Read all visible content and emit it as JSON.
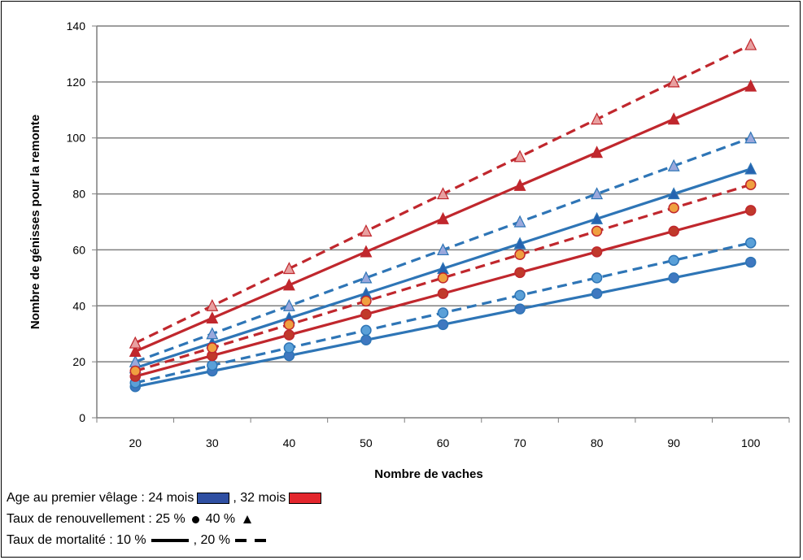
{
  "chart_data": {
    "type": "line",
    "xlabel": "Nombre de vaches",
    "ylabel": "Nombre de génisses pour la remonte",
    "x": [
      20,
      30,
      40,
      50,
      60,
      70,
      80,
      90,
      100
    ],
    "xlim": [
      15,
      105
    ],
    "ylim": [
      0,
      140
    ],
    "yticks": [
      0,
      20,
      40,
      60,
      80,
      100,
      120,
      140
    ],
    "grid": true,
    "series": [
      {
        "color": "#2e75b6",
        "dash": false,
        "marker": "circle",
        "values": [
          11.1,
          16.7,
          22.2,
          27.8,
          33.3,
          38.9,
          44.4,
          50.0,
          55.6
        ]
      },
      {
        "color": "#2e75b6",
        "dash": true,
        "marker": "circle",
        "values": [
          12.5,
          18.75,
          25.0,
          31.25,
          37.5,
          43.75,
          50.0,
          56.25,
          62.5
        ]
      },
      {
        "color": "#2e75b6",
        "dash": false,
        "marker": "triangle",
        "values": [
          17.8,
          26.7,
          35.6,
          44.4,
          53.3,
          62.2,
          71.1,
          80.0,
          88.9
        ]
      },
      {
        "color": "#2e75b6",
        "dash": true,
        "marker": "triangle",
        "values": [
          20.0,
          30.0,
          40.0,
          50.0,
          60.0,
          70.0,
          80.0,
          90.0,
          100.0
        ]
      },
      {
        "color": "#c0272d",
        "dash": false,
        "marker": "circle",
        "values": [
          14.8,
          22.2,
          29.6,
          37.0,
          44.4,
          51.9,
          59.3,
          66.7,
          74.1
        ]
      },
      {
        "color": "#c0272d",
        "dash": true,
        "marker": "circle",
        "values": [
          16.7,
          25.0,
          33.3,
          41.7,
          50.0,
          58.3,
          66.7,
          75.0,
          83.3
        ]
      },
      {
        "color": "#c0272d",
        "dash": false,
        "marker": "triangle",
        "values": [
          23.7,
          35.6,
          47.4,
          59.3,
          71.1,
          83.0,
          94.8,
          106.7,
          118.5
        ]
      },
      {
        "color": "#c0272d",
        "dash": true,
        "marker": "triangle",
        "values": [
          26.7,
          40.0,
          53.3,
          66.7,
          80.0,
          93.3,
          106.7,
          120.0,
          133.3
        ]
      }
    ]
  },
  "legend": {
    "age_text": "Age au premier vêlage : 24 mois",
    "age_sep": ", 32 mois",
    "age_24_color": "#2f4fa2",
    "age_32_color": "#e3262d",
    "rate_text": "Taux de renouvellement : 25 %",
    "rate_sep": "40 %",
    "mort_text": "Taux de mortalité : 10 %",
    "mort_sep": ", 20 %"
  }
}
